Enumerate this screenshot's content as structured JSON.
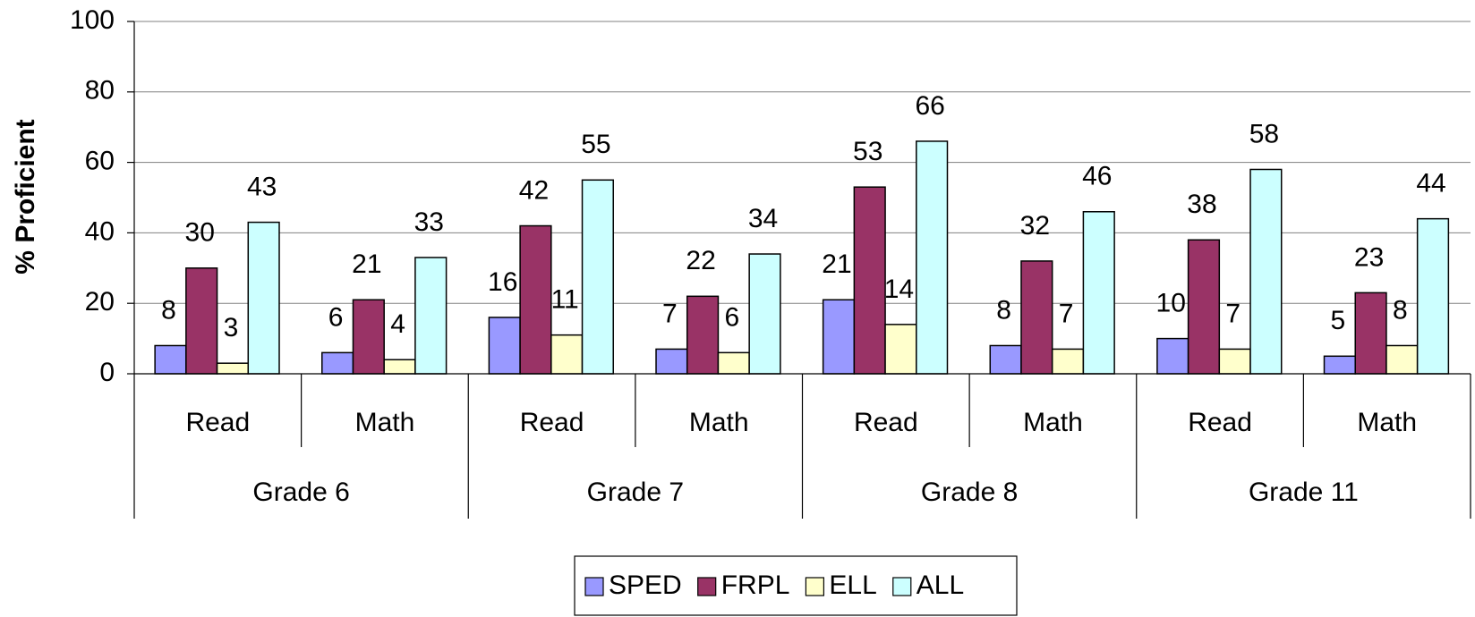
{
  "chart_data": {
    "type": "bar",
    "y_axis_label": "% Proficient",
    "categories": [
      "Read",
      "Math",
      "Read",
      "Math",
      "Read",
      "Math",
      "Read",
      "Math"
    ],
    "groups": [
      "Grade 6",
      "Grade 7",
      "Grade 8",
      "Grade 11"
    ],
    "series": [
      {
        "name": "SPED",
        "color": "#9999ff",
        "values": [
          8,
          6,
          16,
          7,
          21,
          8,
          10,
          5
        ]
      },
      {
        "name": "FRPL",
        "color": "#993366",
        "values": [
          30,
          21,
          42,
          22,
          53,
          32,
          38,
          23
        ]
      },
      {
        "name": "ELL",
        "color": "#ffffcc",
        "values": [
          3,
          4,
          11,
          6,
          14,
          7,
          7,
          8
        ]
      },
      {
        "name": "ALL",
        "color": "#ccffff",
        "values": [
          43,
          33,
          55,
          34,
          66,
          46,
          58,
          44
        ]
      }
    ],
    "ylim": [
      0,
      100
    ],
    "yticks": [
      0,
      20,
      40,
      60,
      80,
      100
    ],
    "grid": true,
    "legend": "bottom"
  }
}
